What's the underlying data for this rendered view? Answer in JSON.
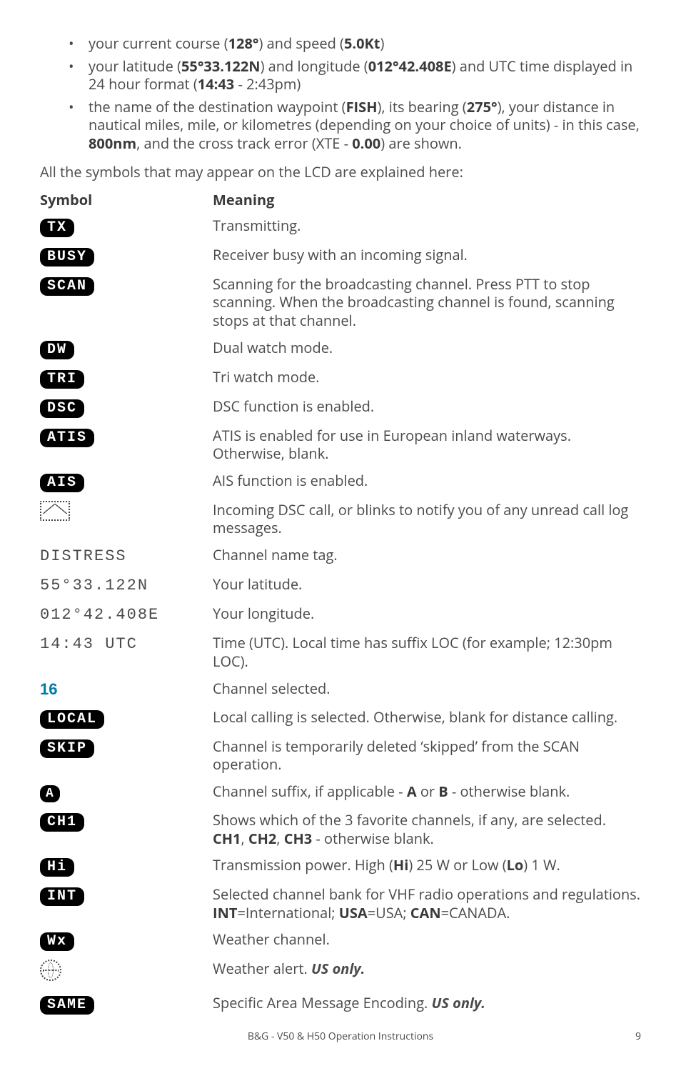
{
  "bullets": [
    {
      "pre": "your current course (",
      "b1": "128°",
      "mid": ") and speed (",
      "b2": "5.0Kt",
      "post": ")"
    },
    {
      "pre": "your latitude (",
      "b1": "55°33.122N",
      "mid": ") and longitude (",
      "b2": "012°42.408E",
      "mid2": ") and UTC time displayed in 24 hour format (",
      "b3": "14:43",
      "post": " - 2:43pm)"
    },
    {
      "pre": "the name of the destination waypoint (",
      "b1": "FISH",
      "mid": "), its bearing (",
      "b2": "275°",
      "mid2": "), your distance in nautical miles, mile, or kilometres (depending on your choice of units) - in this case, ",
      "b3": "800nm",
      "mid3": ", and the cross track error (XTE - ",
      "b4": "0.00",
      "post": ") are shown."
    }
  ],
  "intro": "All the symbols that may appear on the LCD are explained here:",
  "headers": {
    "symbol": "Symbol",
    "meaning": "Meaning"
  },
  "rows": [
    {
      "sym_type": "pill",
      "sym_text": "TX",
      "meaning": "Transmitting."
    },
    {
      "sym_type": "pill",
      "sym_text": "BUSY",
      "meaning": "Receiver busy with an incoming signal."
    },
    {
      "sym_type": "pill",
      "sym_text": "SCAN",
      "meaning": "Scanning for the broadcasting channel. Press PTT to stop scanning. When the broadcasting channel is found, scanning stops at that channel."
    },
    {
      "sym_type": "pill",
      "sym_text": "DW",
      "meaning": "Dual watch mode."
    },
    {
      "sym_type": "pill",
      "sym_text": "TRI",
      "meaning": "Tri watch mode."
    },
    {
      "sym_type": "pill",
      "sym_text": "DSC",
      "meaning": "DSC function is enabled."
    },
    {
      "sym_type": "pill",
      "sym_text": "ATIS",
      "meaning": "ATIS is enabled for use in European inland waterways. Otherwise, blank."
    },
    {
      "sym_type": "pill",
      "sym_text": "AIS",
      "meaning": "AIS function is enabled."
    },
    {
      "sym_type": "envelope",
      "meaning": "Incoming DSC call, or blinks to notify you of any unread call log messages."
    },
    {
      "sym_type": "lcd",
      "sym_text": "DISTRESS",
      "meaning": "Channel name tag."
    },
    {
      "sym_type": "lcd",
      "sym_text": "55°33.122N",
      "meaning": "Your latitude."
    },
    {
      "sym_type": "lcd",
      "sym_text": "012°42.408E",
      "meaning": "Your longitude."
    },
    {
      "sym_type": "lcd",
      "sym_text": "14:43 UTC",
      "meaning": "Time (UTC).  Local time has suffix LOC (for example; 12:30pm LOC)."
    },
    {
      "sym_type": "lcd-bold",
      "sym_text": "16",
      "meaning": "Channel selected."
    },
    {
      "sym_type": "pill",
      "sym_text": "LOCAL",
      "meaning": "Local calling is selected. Otherwise, blank for distance calling."
    },
    {
      "sym_type": "pill",
      "sym_text": "SKIP",
      "meaning": "Channel is temporarily deleted ‘skipped’ from the SCAN operation."
    },
    {
      "sym_type": "pill",
      "sym_text": "A",
      "pill_class": "small",
      "meaning_html": "Channel suffix, if applicable - <b>A</b> or <b>B</b> - otherwise blank."
    },
    {
      "sym_type": "pill",
      "sym_text": "CH1",
      "meaning_html": "Shows which of the 3 favorite channels, if any, are selected. <b>CH1</b>, <b>CH2</b>, <b>CH3</b> - otherwise blank."
    },
    {
      "sym_type": "pill",
      "sym_text": "Hi",
      "meaning_html": "Transmission power. High (<b>Hi</b>) 25 W or Low (<b>Lo</b>) 1 W."
    },
    {
      "sym_type": "pill",
      "sym_text": "INT",
      "meaning_html": "Selected channel bank for VHF radio operations and regulations. <b>INT</b>=International; <b>USA</b>=USA; <b>CAN</b>=CANADA."
    },
    {
      "sym_type": "pill",
      "sym_text": "Wx",
      "meaning": "Weather channel."
    },
    {
      "sym_type": "globe",
      "meaning_html": "Weather alert. <em class=\"italic\">US only.</em>"
    },
    {
      "sym_type": "pill",
      "sym_text": "SAME",
      "meaning_html": "Specific Area Message Encoding. <em class=\"italic\">US only.</em>"
    }
  ],
  "footer": {
    "text": "B&G - V50 & H50 Operation Instructions",
    "page": "9"
  }
}
